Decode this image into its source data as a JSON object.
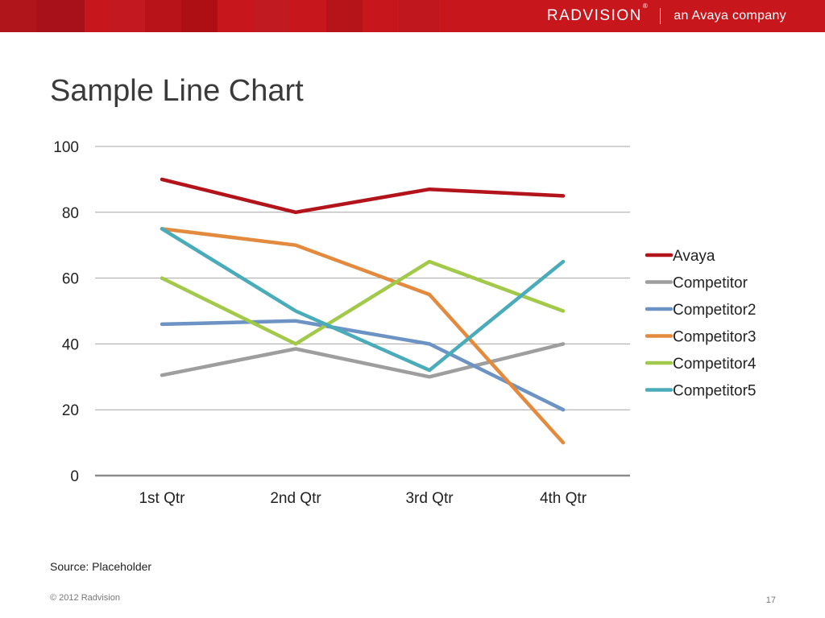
{
  "header": {
    "logo_text": "RADVISION",
    "logo_mark": "®",
    "tagline": "an Avaya company",
    "colors": {
      "bar": "#c8161d",
      "tiles": [
        "#b0151c",
        "#a8111a",
        "#c41820",
        "#b71319",
        "#ae0f15",
        "#c21a21",
        "#b51419",
        "#c0161d"
      ]
    }
  },
  "title": "Sample Line Chart",
  "chart_data": {
    "type": "line",
    "categories": [
      "1st Qtr",
      "2nd Qtr",
      "3rd Qtr",
      "4th Qtr"
    ],
    "ylim": [
      0,
      100
    ],
    "yticks": [
      "0",
      "20",
      "40",
      "60",
      "80",
      "100"
    ],
    "grid": true,
    "legend_position": "right",
    "series": [
      {
        "name": "Avaya",
        "color": "#b3131a",
        "values": [
          90,
          80,
          87,
          85
        ]
      },
      {
        "name": "Competitor",
        "color": "#9e9e9e",
        "values": [
          30.5,
          38.5,
          30,
          40
        ]
      },
      {
        "name": "Competitor2",
        "color": "#6c93c4",
        "values": [
          46,
          47,
          40,
          20
        ]
      },
      {
        "name": "Competitor3",
        "color": "#e38a3e",
        "values": [
          75,
          70,
          55,
          10
        ]
      },
      {
        "name": "Competitor4",
        "color": "#a2c94a",
        "values": [
          60,
          40,
          65,
          50
        ]
      },
      {
        "name": "Competitor5",
        "color": "#4aacb8",
        "values": [
          75,
          50,
          32,
          65
        ]
      }
    ]
  },
  "footer": {
    "source": "Source: Placeholder",
    "copyright": "© 2012 Radvision",
    "page_number": "17"
  }
}
